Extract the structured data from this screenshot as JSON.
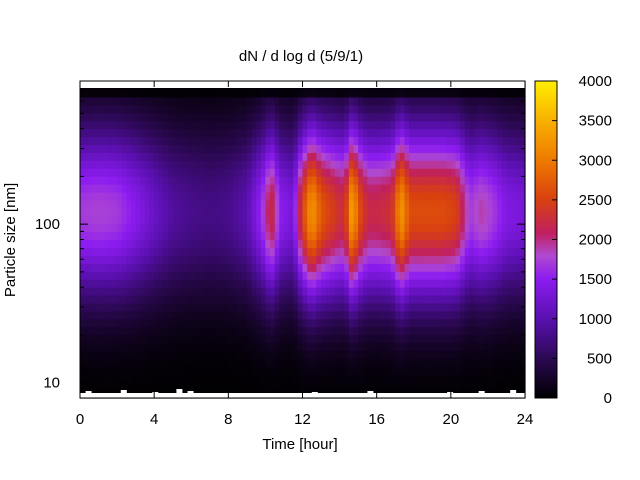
{
  "chart_data": {
    "type": "heatmap",
    "title": "dN / d log d (5/9/1)",
    "xlabel": "Time [hour]",
    "ylabel": "Particle size [nm]",
    "x_axis": {
      "range": [
        0,
        24
      ],
      "ticks": [
        0,
        4,
        8,
        12,
        16,
        20,
        24
      ],
      "tick_labels": [
        "0",
        "4",
        "8",
        "12",
        "16",
        "20",
        "24"
      ]
    },
    "y_axis": {
      "scale": "log",
      "range": [
        8,
        800
      ],
      "ticks": [
        10,
        100
      ],
      "tick_labels": [
        "10",
        "100"
      ]
    },
    "colorbar": {
      "range": [
        0,
        4000
      ],
      "ticks": [
        0,
        500,
        1000,
        1500,
        2000,
        2500,
        3000,
        3500,
        4000
      ],
      "tick_labels": [
        "0",
        "500",
        "1000",
        "1500",
        "2000",
        "2500",
        "3000",
        "3500",
        "4000"
      ],
      "palette": [
        "#000000",
        "#3a0a6e",
        "#7a14e6",
        "#b04ad0",
        "#cc2a1a",
        "#ee7a00",
        "#ffdf00"
      ]
    },
    "peak_diameter_nm": 120,
    "profile": {
      "hours": [
        0,
        1,
        2,
        3,
        4,
        5,
        6,
        7,
        8,
        9,
        9.8,
        10.3,
        10.8,
        11.5,
        12,
        12.5,
        13,
        14,
        14.3,
        14.7,
        15,
        15.5,
        16,
        16.8,
        17.3,
        17.8,
        18.5,
        19.5,
        20.3,
        21,
        21.7,
        22.3,
        23,
        24
      ],
      "max_value": [
        1700,
        1750,
        1700,
        1450,
        1150,
        900,
        800,
        750,
        800,
        1000,
        1600,
        2300,
        1500,
        1300,
        2500,
        3300,
        2700,
        2300,
        2300,
        3500,
        2700,
        2200,
        2200,
        2300,
        3300,
        2600,
        2600,
        2600,
        2500,
        1700,
        1900,
        1700,
        1400,
        1300
      ]
    }
  }
}
